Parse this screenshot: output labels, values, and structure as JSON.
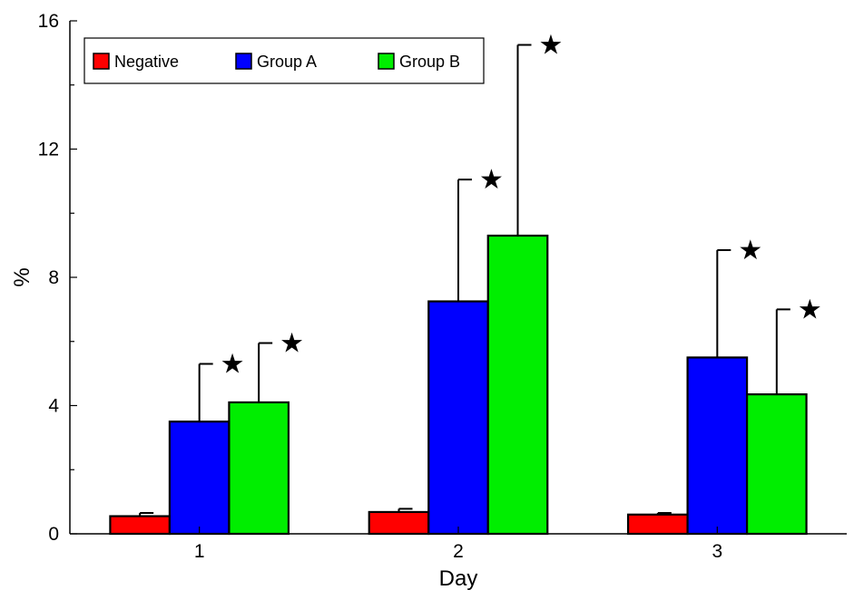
{
  "chart_data": {
    "type": "bar",
    "title": "",
    "xlabel": "Day",
    "ylabel": "%",
    "categories": [
      "1",
      "2",
      "3"
    ],
    "ylim": [
      0,
      16
    ],
    "yticks": [
      "0",
      "4",
      "8",
      "12",
      "16"
    ],
    "grid": false,
    "legend_position": "top-left",
    "series": [
      {
        "name": "Negative",
        "color": "#ff0000",
        "values": [
          0.55,
          0.68,
          0.6
        ],
        "errors": [
          0.1,
          0.1,
          0.05
        ],
        "significant": [
          false,
          false,
          false
        ]
      },
      {
        "name": "Group A",
        "color": "#0000ff",
        "values": [
          3.5,
          7.25,
          5.5
        ],
        "errors": [
          1.8,
          3.8,
          3.35
        ],
        "significant": [
          true,
          true,
          true
        ]
      },
      {
        "name": "Group B",
        "color": "#00ee00",
        "values": [
          4.1,
          9.3,
          4.35
        ],
        "errors": [
          1.85,
          5.95,
          2.65
        ],
        "significant": [
          true,
          true,
          true
        ]
      }
    ],
    "significance_marker": "★"
  }
}
